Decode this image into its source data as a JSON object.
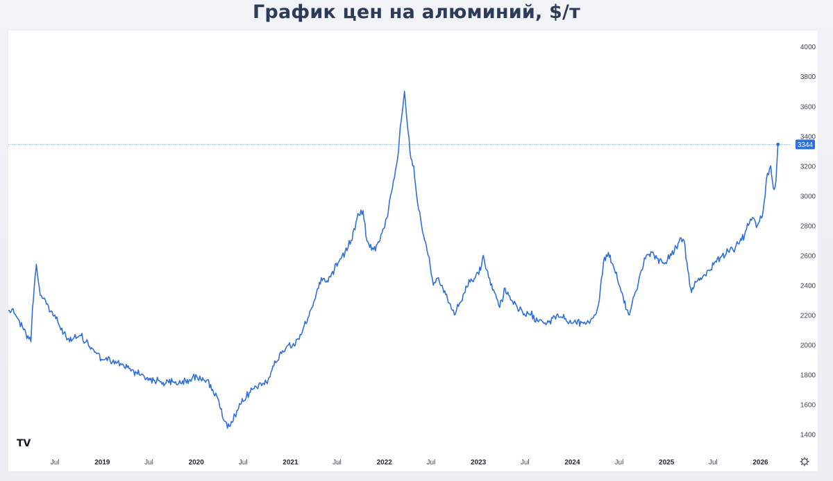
{
  "page_title": "График цен на алюминий, $/т",
  "colors": {
    "line": "#2f6fdc",
    "price_line": "#9bb6e6",
    "price_label_bg": "#2f6fdc",
    "title": "#2e3a59"
  },
  "icons": {
    "logo": "tradingview-logo-icon",
    "settings": "gear-icon"
  },
  "logo_text": "TV",
  "chart_data": {
    "type": "line",
    "title": "График цен на алюминий, $/т",
    "xlabel": "",
    "ylabel": "",
    "ylim": [
      1300,
      4080
    ],
    "xlim": [
      "2018-01-01",
      "2026-05-01"
    ],
    "grid": false,
    "y_ticks": [
      1400,
      1600,
      1800,
      2000,
      2200,
      2400,
      2600,
      2800,
      3000,
      3200,
      3400,
      3600,
      3800,
      4000
    ],
    "y_tick_labels": [
      "1400",
      "1600",
      "1800",
      "2000",
      "2200",
      "2400",
      "2600",
      "2800",
      "3000",
      "3200",
      "3400",
      "3600",
      "3800",
      "4000"
    ],
    "x_ticks": [
      {
        "label": "Jul",
        "date": "2018-07-01",
        "year": false
      },
      {
        "label": "2019",
        "date": "2019-01-01",
        "year": true
      },
      {
        "label": "Jul",
        "date": "2019-07-01",
        "year": false
      },
      {
        "label": "2020",
        "date": "2020-01-01",
        "year": true
      },
      {
        "label": "Jul",
        "date": "2020-07-01",
        "year": false
      },
      {
        "label": "2021",
        "date": "2021-01-01",
        "year": true
      },
      {
        "label": "Jul",
        "date": "2021-07-01",
        "year": false
      },
      {
        "label": "2022",
        "date": "2022-01-01",
        "year": true
      },
      {
        "label": "Jul",
        "date": "2022-07-01",
        "year": false
      },
      {
        "label": "2023",
        "date": "2023-01-01",
        "year": true
      },
      {
        "label": "Jul",
        "date": "2023-07-01",
        "year": false
      },
      {
        "label": "2024",
        "date": "2024-01-01",
        "year": true
      },
      {
        "label": "Jul",
        "date": "2024-07-01",
        "year": false
      },
      {
        "label": "2025",
        "date": "2025-01-01",
        "year": true
      },
      {
        "label": "Jul",
        "date": "2025-07-01",
        "year": false
      },
      {
        "label": "2026",
        "date": "2026-01-01",
        "year": true
      }
    ],
    "current_price": 3344,
    "current_price_label": "3344",
    "series": [
      {
        "x": [
          "2018-01-01",
          "2018-01-20",
          "2018-02-05",
          "2018-02-25",
          "2018-03-10",
          "2018-03-30",
          "2018-04-05",
          "2018-04-15",
          "2018-04-20",
          "2018-05-05",
          "2018-05-25",
          "2018-06-10",
          "2018-07-01",
          "2018-07-20",
          "2018-08-05",
          "2018-08-20",
          "2018-09-10",
          "2018-09-25",
          "2018-10-10",
          "2018-10-30",
          "2018-11-20",
          "2018-12-10",
          "2019-01-05",
          "2019-02-01",
          "2019-03-01",
          "2019-03-25",
          "2019-04-15",
          "2019-05-10",
          "2019-06-01",
          "2019-06-25",
          "2019-07-20",
          "2019-08-10",
          "2019-09-05",
          "2019-10-01",
          "2019-10-25",
          "2019-11-20",
          "2019-12-15",
          "2020-01-15",
          "2020-02-10",
          "2020-03-05",
          "2020-03-25",
          "2020-04-15",
          "2020-05-01",
          "2020-05-20",
          "2020-06-10",
          "2020-07-01",
          "2020-07-25",
          "2020-08-20",
          "2020-09-15",
          "2020-10-10",
          "2020-11-05",
          "2020-12-01",
          "2020-12-25",
          "2021-01-20",
          "2021-02-15",
          "2021-03-10",
          "2021-04-05",
          "2021-05-01",
          "2021-05-20",
          "2021-06-10",
          "2021-07-05",
          "2021-08-01",
          "2021-08-25",
          "2021-09-20",
          "2021-10-10",
          "2021-10-25",
          "2021-11-20",
          "2021-12-15",
          "2022-01-10",
          "2022-02-05",
          "2022-02-25",
          "2022-03-07",
          "2022-03-20",
          "2022-04-10",
          "2022-04-25",
          "2022-05-10",
          "2022-05-30",
          "2022-06-20",
          "2022-07-10",
          "2022-07-30",
          "2022-08-20",
          "2022-09-10",
          "2022-09-30",
          "2022-10-20",
          "2022-11-10",
          "2022-11-30",
          "2022-12-20",
          "2023-01-10",
          "2023-01-20",
          "2023-02-10",
          "2023-03-05",
          "2023-03-25",
          "2023-04-15",
          "2023-05-10",
          "2023-06-01",
          "2023-06-25",
          "2023-07-20",
          "2023-08-15",
          "2023-09-10",
          "2023-10-05",
          "2023-11-01",
          "2023-11-25",
          "2023-12-20",
          "2024-01-15",
          "2024-02-10",
          "2024-03-05",
          "2024-03-30",
          "2024-04-15",
          "2024-05-01",
          "2024-05-20",
          "2024-06-10",
          "2024-07-01",
          "2024-07-20",
          "2024-08-10",
          "2024-09-01",
          "2024-09-25",
          "2024-10-15",
          "2024-11-05",
          "2024-11-25",
          "2024-12-20",
          "2025-01-20",
          "2025-02-15",
          "2025-03-10",
          "2025-03-25",
          "2025-04-08",
          "2025-04-25",
          "2025-05-20",
          "2025-06-15",
          "2025-07-10",
          "2025-08-05",
          "2025-09-01",
          "2025-09-25",
          "2025-10-20",
          "2025-11-15",
          "2025-12-05",
          "2025-12-20",
          "2026-01-05",
          "2026-01-15",
          "2026-01-28",
          "2026-02-10",
          "2026-02-20",
          "2026-03-02",
          "2026-03-10"
        ],
        "y": [
          2230,
          2240,
          2180,
          2120,
          2080,
          2020,
          2250,
          2460,
          2540,
          2330,
          2300,
          2220,
          2200,
          2120,
          2080,
          2040,
          2040,
          2050,
          2060,
          2020,
          1980,
          1940,
          1900,
          1890,
          1880,
          1860,
          1840,
          1820,
          1800,
          1780,
          1760,
          1760,
          1740,
          1750,
          1740,
          1760,
          1770,
          1790,
          1760,
          1700,
          1640,
          1500,
          1440,
          1480,
          1560,
          1620,
          1680,
          1720,
          1740,
          1780,
          1880,
          1960,
          2000,
          2000,
          2080,
          2180,
          2300,
          2450,
          2420,
          2480,
          2550,
          2620,
          2700,
          2880,
          2900,
          2700,
          2640,
          2700,
          2850,
          3100,
          3300,
          3500,
          3700,
          3300,
          3200,
          2950,
          2750,
          2600,
          2400,
          2450,
          2350,
          2280,
          2200,
          2280,
          2350,
          2420,
          2450,
          2500,
          2600,
          2450,
          2350,
          2250,
          2380,
          2300,
          2250,
          2200,
          2200,
          2180,
          2150,
          2160,
          2200,
          2180,
          2150,
          2150,
          2150,
          2150,
          2200,
          2300,
          2550,
          2620,
          2520,
          2400,
          2280,
          2200,
          2350,
          2500,
          2600,
          2620,
          2580,
          2550,
          2600,
          2680,
          2700,
          2500,
          2350,
          2420,
          2450,
          2500,
          2560,
          2600,
          2620,
          2650,
          2700,
          2800,
          2850,
          2800,
          2850,
          2950,
          3150,
          3200,
          3050,
          3100,
          3344
        ]
      }
    ]
  }
}
